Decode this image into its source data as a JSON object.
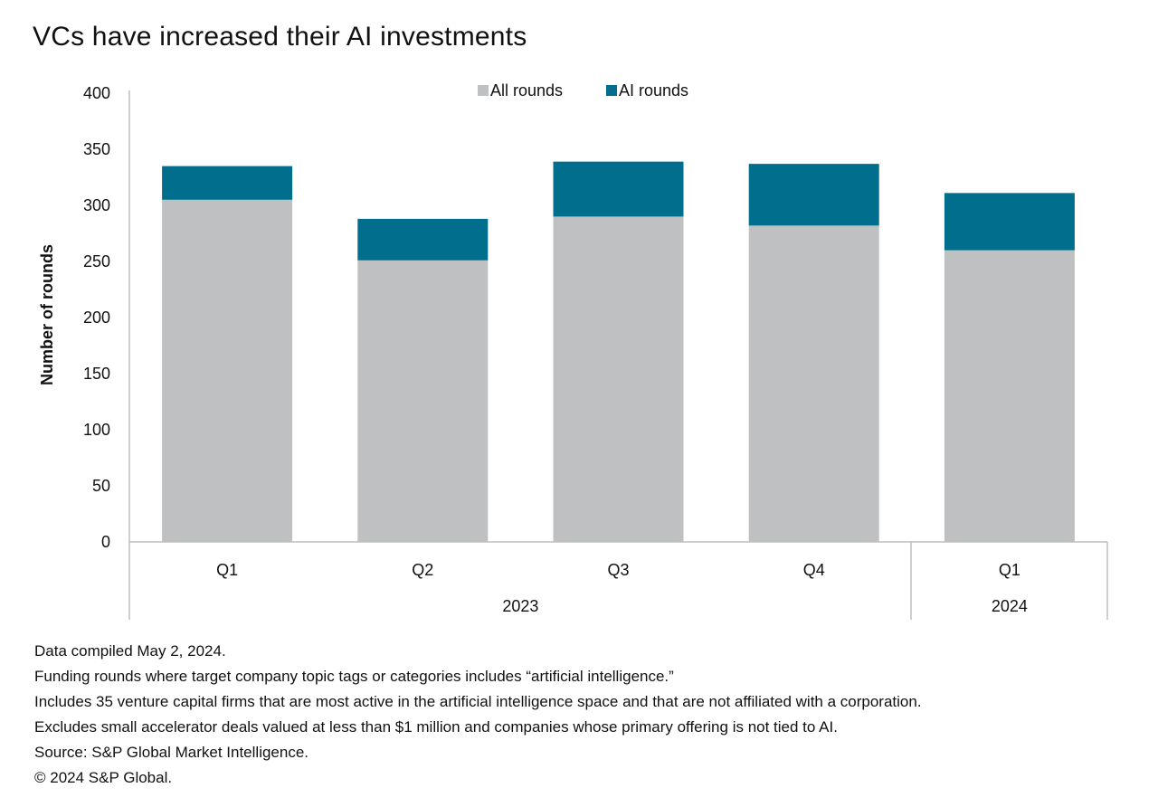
{
  "chart_data": {
    "type": "bar",
    "stacked": true,
    "title": "VCs have increased their AI investments",
    "ylabel": "Number of rounds",
    "ylim": [
      0,
      400
    ],
    "yticks": [
      0,
      50,
      100,
      150,
      200,
      250,
      300,
      350,
      400
    ],
    "categories": [
      "Q1",
      "Q2",
      "Q3",
      "Q4",
      "Q1"
    ],
    "year_groups": [
      {
        "label": "2023",
        "count": 4
      },
      {
        "label": "2024",
        "count": 1
      }
    ],
    "series": [
      {
        "name": "All rounds",
        "color": "#bfc0c2",
        "values": [
          305,
          251,
          290,
          282,
          260
        ]
      },
      {
        "name": "AI rounds",
        "color": "#006e8c",
        "values": [
          30,
          37,
          49,
          55,
          51
        ]
      }
    ],
    "legend_position": "top-center",
    "grid": false
  },
  "notes": [
    "Data compiled May 2, 2024.",
    "Funding rounds where target company topic tags or categories includes “artificial intelligence.”",
    "Includes 35 venture capital firms that are most active in the artificial intelligence space and that are not affiliated with a corporation.",
    "Excludes small accelerator deals valued at less than $1 million and companies whose primary offering is not tied to AI.",
    "Source: S&P Global Market Intelligence.",
    "© 2024 S&P Global."
  ]
}
